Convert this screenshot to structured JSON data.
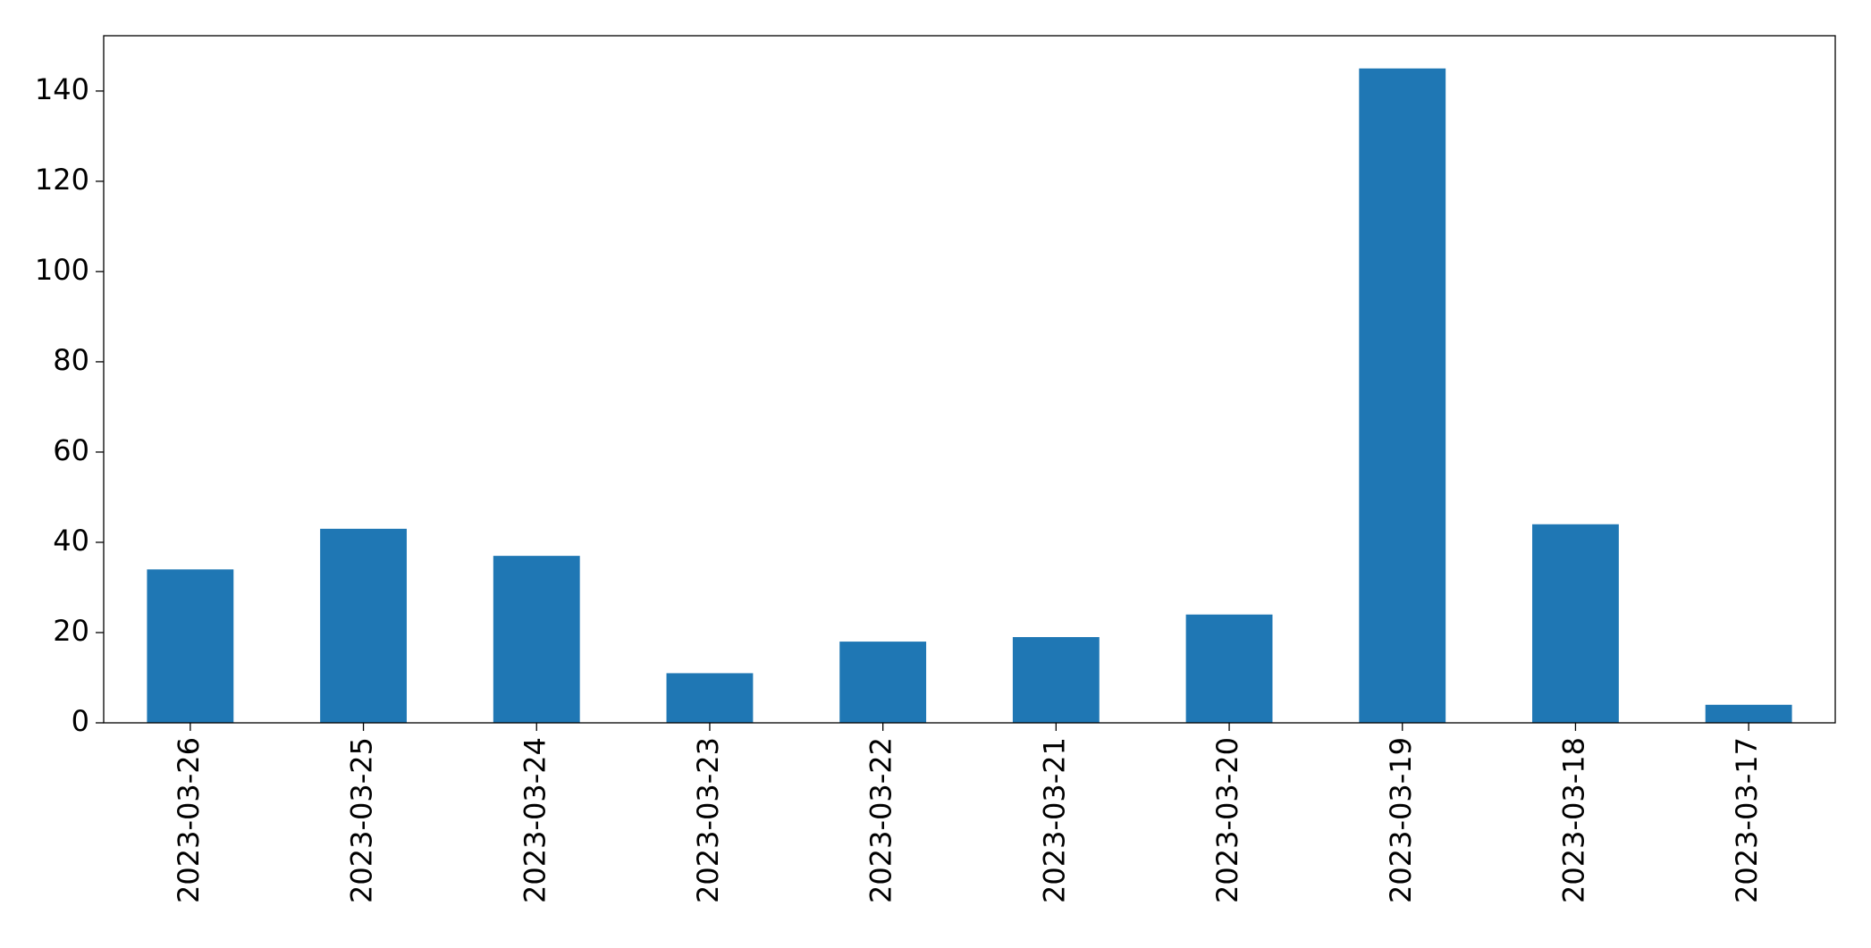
{
  "chart_data": {
    "type": "bar",
    "categories": [
      "2023-03-26",
      "2023-03-25",
      "2023-03-24",
      "2023-03-23",
      "2023-03-22",
      "2023-03-21",
      "2023-03-20",
      "2023-03-19",
      "2023-03-18",
      "2023-03-17"
    ],
    "values": [
      34,
      43,
      37,
      11,
      18,
      19,
      24,
      145,
      44,
      4
    ],
    "color": "#1f77b4",
    "ylim": [
      0,
      152.25
    ],
    "yticks": [
      0,
      20,
      40,
      60,
      80,
      100,
      120,
      140
    ],
    "grid": false
  }
}
